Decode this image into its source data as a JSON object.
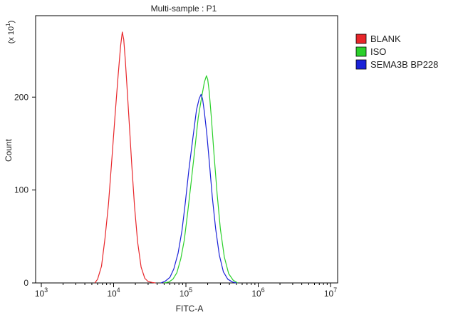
{
  "chart_data": {
    "type": "line",
    "title": "Multi-sample : P1",
    "xlabel": "FITC-A",
    "ylabel": "Count",
    "y_multiplier_label": "(x 10",
    "y_multiplier_exp": "1",
    "y_multiplier_close": ")",
    "x_scale": "log",
    "xlim": [
      1000,
      10000000
    ],
    "ylim": [
      0,
      27
    ],
    "x_ticks": [
      {
        "base": "10",
        "exp": "3",
        "value": 1000
      },
      {
        "base": "10",
        "exp": "4",
        "value": 10000
      },
      {
        "base": "10",
        "exp": "5",
        "value": 100000
      },
      {
        "base": "10",
        "exp": "6",
        "value": 1000000
      },
      {
        "base": "10",
        "exp": "7",
        "value": 10000000
      }
    ],
    "y_ticks": [
      {
        "label": "0",
        "value": 0
      },
      {
        "label": "100",
        "value": 10
      },
      {
        "label": "200",
        "value": 20
      }
    ],
    "legend_position": "top-right",
    "grid": false,
    "series": [
      {
        "name": "BLANK",
        "color": "#e8262a",
        "x": [
          5500,
          6000,
          6800,
          7600,
          8500,
          9500,
          10500,
          11500,
          12500,
          13200,
          13800,
          14500,
          15500,
          16500,
          17800,
          19500,
          21500,
          24000,
          27000,
          30000,
          34000,
          38000
        ],
        "y": [
          0,
          0.4,
          1.8,
          4.8,
          8.5,
          13.5,
          18.2,
          22.2,
          25.5,
          27.0,
          26.2,
          24.0,
          20.5,
          17.0,
          12.8,
          8.2,
          4.4,
          1.7,
          0.5,
          0.15,
          0.05,
          0
        ]
      },
      {
        "name": "ISO",
        "color": "#2ad02a",
        "x": [
          50000,
          58000,
          66000,
          75000,
          85000,
          95000,
          105000,
          118000,
          132000,
          148000,
          165000,
          180000,
          192000,
          200000,
          210000,
          225000,
          245000,
          270000,
          300000,
          340000,
          390000,
          450000,
          520000
        ],
        "y": [
          0,
          0.1,
          0.4,
          1.1,
          2.6,
          4.6,
          7.4,
          10.8,
          14.2,
          17.8,
          20.0,
          21.6,
          22.3,
          21.9,
          20.6,
          17.8,
          13.8,
          9.6,
          5.8,
          2.8,
          1.0,
          0.3,
          0
        ]
      },
      {
        "name": "SEMA3B BP228",
        "color": "#1a22d8",
        "x": [
          45000,
          52000,
          60000,
          68000,
          78000,
          88000,
          98000,
          110000,
          125000,
          140000,
          152000,
          162000,
          170000,
          180000,
          195000,
          212000,
          232000,
          258000,
          290000,
          330000,
          380000,
          440000,
          500000
        ],
        "y": [
          0,
          0.2,
          0.6,
          1.5,
          3.2,
          5.6,
          8.6,
          12.2,
          15.6,
          18.6,
          19.8,
          20.3,
          19.8,
          18.4,
          16.0,
          12.8,
          9.2,
          5.8,
          3.0,
          1.2,
          0.4,
          0.1,
          0
        ]
      }
    ]
  }
}
